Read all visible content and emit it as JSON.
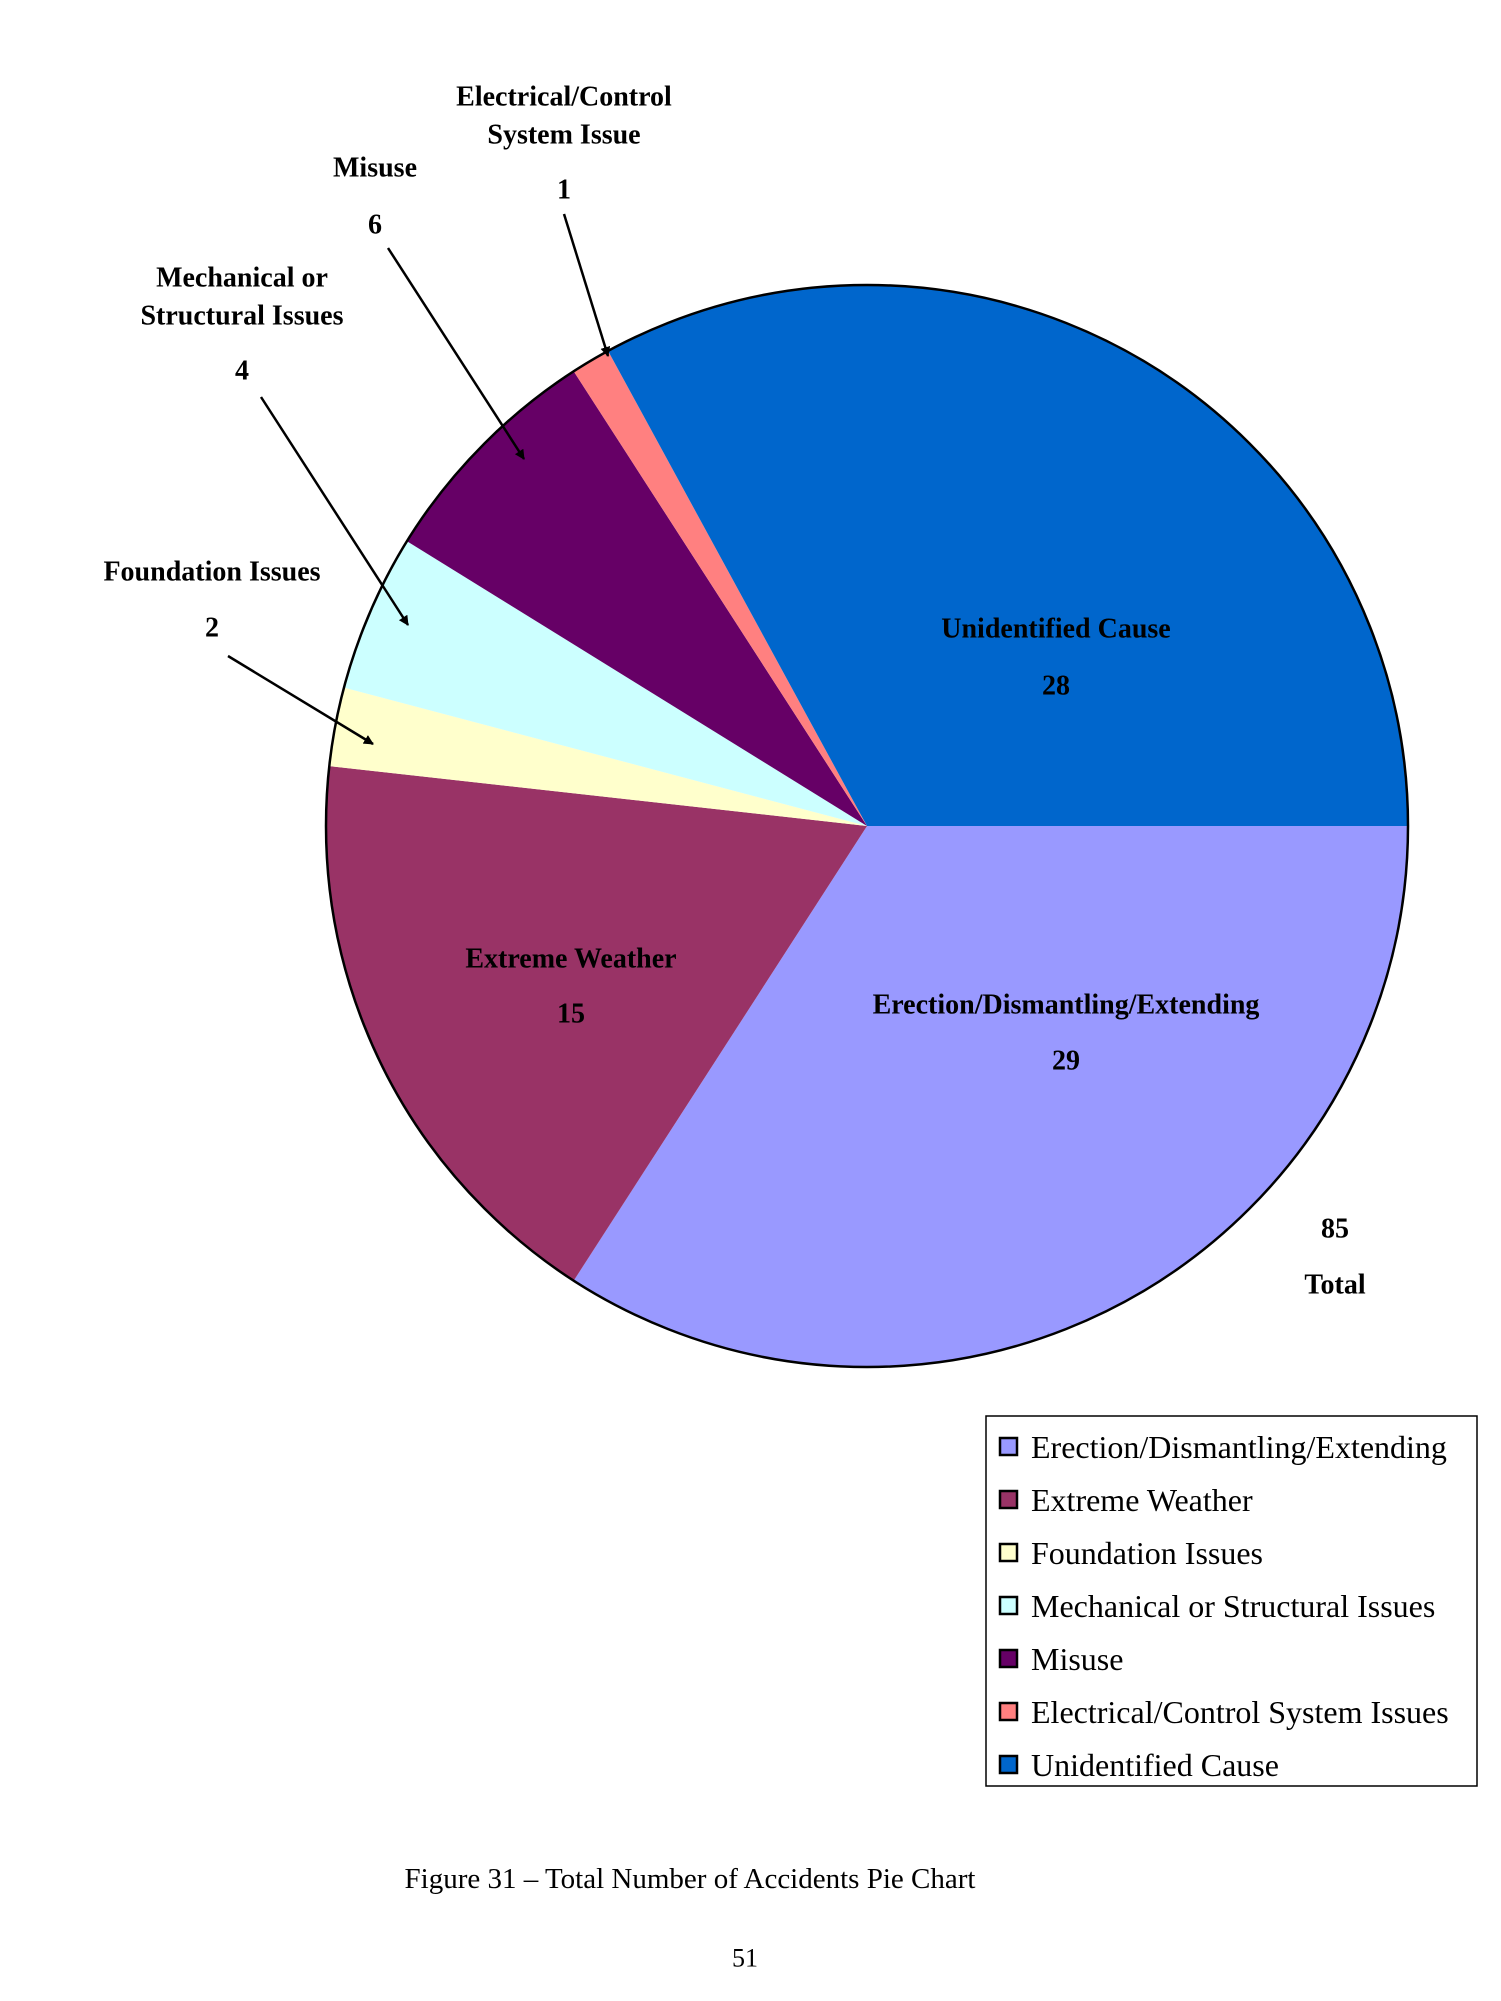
{
  "chart_data": {
    "type": "pie",
    "title": "",
    "slices": [
      {
        "label": "Erection/Dismantling/Extending",
        "value": 29,
        "color": "#9999FF"
      },
      {
        "label": "Extreme Weather",
        "value": 15,
        "color": "#993366"
      },
      {
        "label": "Foundation Issues",
        "value": 2,
        "color": "#FFFFCC"
      },
      {
        "label": "Mechanical or Structural Issues",
        "value": 4,
        "color": "#CCFFFF"
      },
      {
        "label": "Misuse",
        "value": 6,
        "color": "#660066"
      },
      {
        "label": "Electrical/Control System Issues",
        "value": 1,
        "color": "#FF8080"
      },
      {
        "label": "Unidentified Cause",
        "value": 28,
        "color": "#0066CC"
      }
    ],
    "data_labels": {
      "erection": {
        "name": "Erection/Dismantling/Extending",
        "value": "29"
      },
      "weather": {
        "name": "Extreme Weather",
        "value": "15"
      },
      "foundation": {
        "name": "Foundation Issues",
        "value": "2"
      },
      "mechanical": {
        "name_line1": "Mechanical or",
        "name_line2": "Structural Issues",
        "value": "4"
      },
      "misuse": {
        "name": "Misuse",
        "value": "6"
      },
      "electrical": {
        "name_line1": "Electrical/Control",
        "name_line2": "System Issue",
        "value": "1"
      },
      "unidentified": {
        "name": "Unidentified Cause",
        "value": "28"
      }
    },
    "total": {
      "value": "85",
      "label": "Total"
    },
    "legend_placement": "bottom-right"
  },
  "caption": "Figure 31 – Total Number of Accidents Pie Chart",
  "page_number": "51"
}
